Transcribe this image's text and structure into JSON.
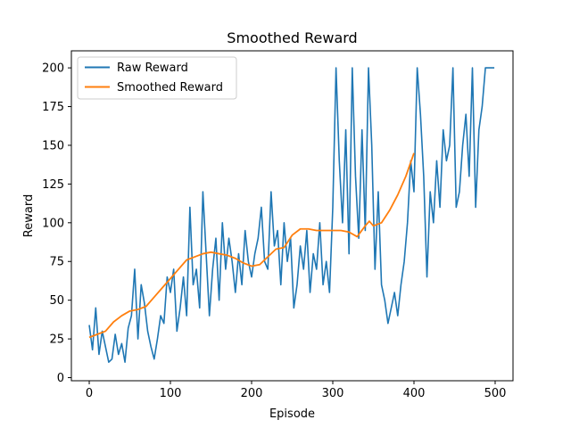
{
  "chart_data": {
    "type": "line",
    "title": "Smoothed Reward",
    "xlabel": "Episode",
    "ylabel": "Reward",
    "xlim": [
      -22,
      522
    ],
    "ylim": [
      -2,
      211
    ],
    "xticks": [
      0,
      100,
      200,
      300,
      400,
      500
    ],
    "yticks": [
      0,
      25,
      50,
      75,
      100,
      125,
      150,
      175,
      200
    ],
    "grid": false,
    "legend_position": "top-left",
    "series": [
      {
        "name": "Raw Reward",
        "color": "#1f77b4",
        "x": [
          0,
          4,
          8,
          12,
          16,
          20,
          24,
          28,
          32,
          36,
          40,
          44,
          48,
          52,
          56,
          60,
          64,
          68,
          72,
          76,
          80,
          84,
          88,
          92,
          96,
          100,
          104,
          108,
          112,
          116,
          120,
          124,
          128,
          132,
          136,
          140,
          144,
          148,
          152,
          156,
          160,
          164,
          168,
          172,
          176,
          180,
          184,
          188,
          192,
          196,
          200,
          204,
          208,
          212,
          216,
          220,
          224,
          228,
          232,
          236,
          240,
          244,
          248,
          252,
          256,
          260,
          264,
          268,
          272,
          276,
          280,
          284,
          288,
          292,
          296,
          300,
          304,
          308,
          312,
          316,
          320,
          324,
          328,
          332,
          336,
          340,
          344,
          348,
          352,
          356,
          360,
          364,
          368,
          372,
          376,
          380,
          384,
          388,
          392,
          396,
          400,
          404,
          408,
          412,
          416,
          420,
          424,
          428,
          432,
          436,
          440,
          444,
          448,
          452,
          456,
          460,
          464,
          468,
          472,
          476,
          480,
          484,
          488,
          492,
          496,
          499
        ],
        "y": [
          34,
          18,
          45,
          15,
          30,
          20,
          10,
          12,
          28,
          15,
          22,
          10,
          32,
          40,
          70,
          25,
          60,
          48,
          30,
          20,
          12,
          25,
          40,
          35,
          65,
          55,
          70,
          30,
          45,
          65,
          40,
          110,
          60,
          70,
          45,
          120,
          80,
          40,
          70,
          90,
          50,
          100,
          70,
          90,
          75,
          55,
          80,
          60,
          95,
          75,
          65,
          80,
          90,
          110,
          75,
          70,
          120,
          85,
          95,
          60,
          100,
          75,
          90,
          45,
          60,
          85,
          70,
          95,
          55,
          80,
          70,
          100,
          60,
          75,
          55,
          110,
          200,
          140,
          100,
          160,
          80,
          200,
          130,
          90,
          160,
          95,
          200,
          150,
          70,
          120,
          60,
          50,
          35,
          45,
          55,
          40,
          60,
          75,
          100,
          140,
          120,
          200,
          170,
          130,
          65,
          120,
          100,
          140,
          110,
          160,
          140,
          150,
          200,
          110,
          120,
          150,
          170,
          130,
          200,
          110,
          160,
          175,
          200,
          200,
          200,
          200
        ]
      },
      {
        "name": "Smoothed Reward",
        "color": "#ff7f0e",
        "x": [
          0,
          10,
          20,
          30,
          40,
          50,
          60,
          70,
          80,
          90,
          100,
          110,
          120,
          130,
          140,
          150,
          160,
          170,
          180,
          190,
          200,
          210,
          220,
          230,
          240,
          250,
          260,
          270,
          280,
          290,
          300,
          310,
          320,
          330,
          340,
          345,
          350,
          360,
          370,
          380,
          390,
          400
        ],
        "y": [
          26,
          28,
          30,
          36,
          40,
          43,
          44,
          46,
          52,
          58,
          64,
          70,
          76,
          78,
          80,
          81,
          80,
          79,
          77,
          74,
          72,
          73,
          78,
          83,
          84,
          92,
          96,
          96,
          95,
          95,
          95,
          95,
          94,
          91,
          98,
          101,
          98,
          100,
          108,
          118,
          130,
          145
        ]
      }
    ]
  }
}
